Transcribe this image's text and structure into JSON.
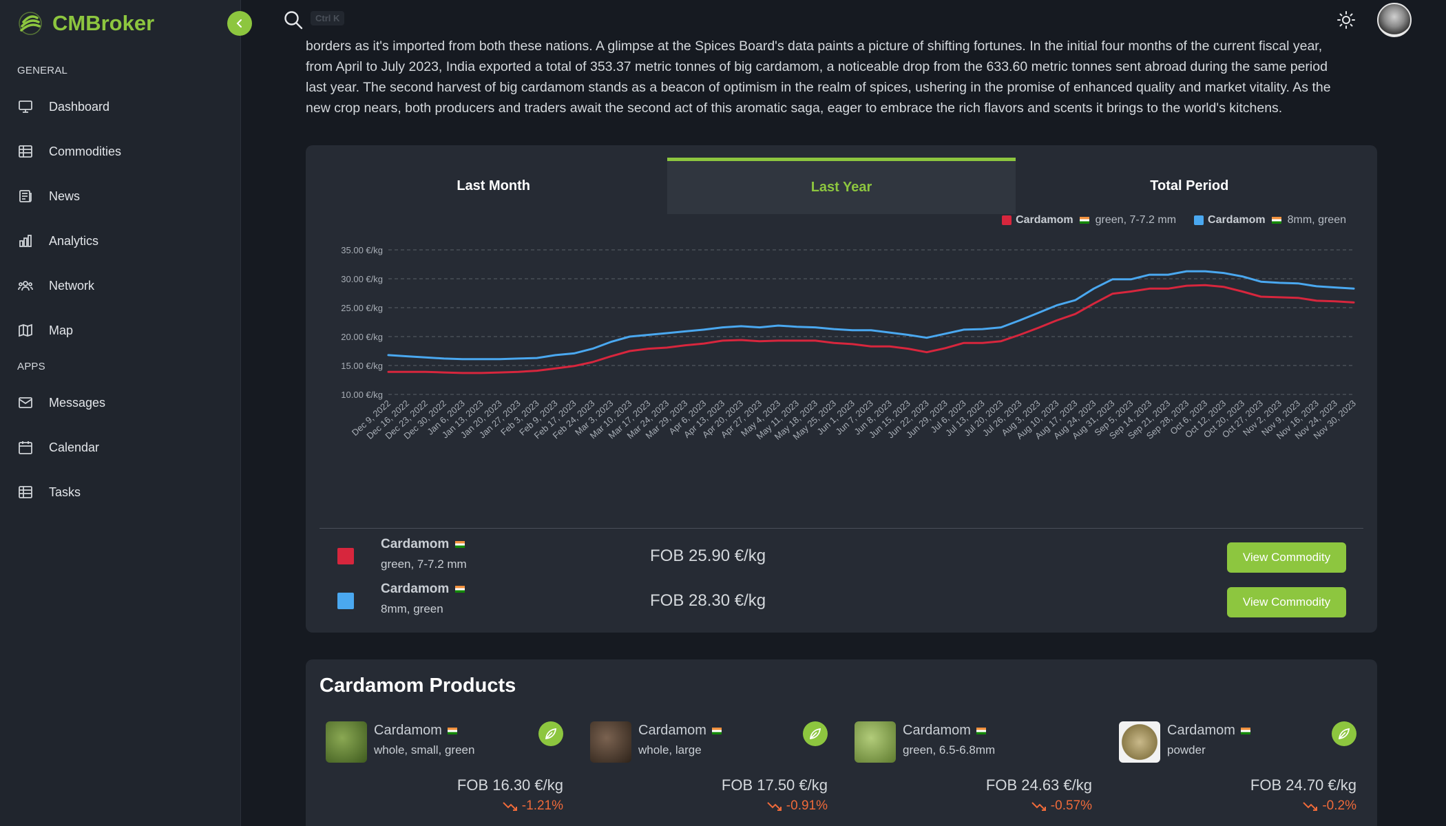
{
  "app": {
    "name": "CMBroker",
    "accent_color": "#8dc63f"
  },
  "sidebar": {
    "section_general": "GENERAL",
    "section_apps": "APPS",
    "items": [
      {
        "label": "Dashboard",
        "icon": "monitor-icon"
      },
      {
        "label": "Commodities",
        "icon": "table-icon"
      },
      {
        "label": "News",
        "icon": "newspaper-icon"
      },
      {
        "label": "Analytics",
        "icon": "bar-chart-icon"
      },
      {
        "label": "Network",
        "icon": "users-icon"
      },
      {
        "label": "Map",
        "icon": "map-icon"
      },
      {
        "label": "Messages",
        "icon": "mail-icon"
      },
      {
        "label": "Calendar",
        "icon": "calendar-icon"
      },
      {
        "label": "Tasks",
        "icon": "table-icon"
      }
    ]
  },
  "topbar": {
    "search_shortcut": "Ctrl K"
  },
  "article": {
    "lines": [
      "borders as it's imported from both these nations. A glimpse at the Spices Board's data paints a picture of shifting fortunes. In the initial four months of the current fiscal year,",
      "from April to July 2023, India exported a total of 353.37 metric tonnes of big cardamom, a noticeable drop from the 633.60 metric tonnes sent abroad during the same period",
      "last year. The second harvest of big cardamom stands as a beacon of optimism in the realm of spices, ushering in the promise of enhanced quality and market vitality. As the",
      "new crop nears, both producers and traders await the second act of this aromatic saga, eager to embrace the rich flavors and scents it brings to the world's kitchens."
    ]
  },
  "chart_tabs": [
    {
      "label": "Last Month",
      "active": false
    },
    {
      "label": "Last Year",
      "active": true
    },
    {
      "label": "Total Period",
      "active": false
    }
  ],
  "chart_data": {
    "type": "line",
    "ylim": [
      10,
      35
    ],
    "yticks": [
      "35.00 €/kg",
      "30.00 €/kg",
      "25.00 €/kg",
      "20.00 €/kg",
      "15.00 €/kg",
      "10.00 €/kg"
    ],
    "grid": true,
    "legend_position": "top-right",
    "x": [
      "Dec 9, 2022",
      "Dec 16, 2022",
      "Dec 23, 2022",
      "Dec 30, 2022",
      "Jan 6, 2023",
      "Jan 13, 2023",
      "Jan 20, 2023",
      "Jan 27, 2023",
      "Feb 3, 2023",
      "Feb 9, 2023",
      "Feb 17, 2023",
      "Feb 24, 2023",
      "Mar 3, 2023",
      "Mar 10, 2023",
      "Mar 17, 2023",
      "Mar 24, 2023",
      "Mar 29, 2023",
      "Apr 6, 2023",
      "Apr 13, 2023",
      "Apr 20, 2023",
      "Apr 27, 2023",
      "May 4, 2023",
      "May 11, 2023",
      "May 18, 2023",
      "May 25, 2023",
      "Jun 1, 2023",
      "Jun 7, 2023",
      "Jun 8, 2023",
      "Jun 15, 2023",
      "Jun 22, 2023",
      "Jun 29, 2023",
      "Jul 6, 2023",
      "Jul 13, 2023",
      "Jul 20, 2023",
      "Jul 26, 2023",
      "Aug 3, 2023",
      "Aug 10, 2023",
      "Aug 17, 2023",
      "Aug 24, 2023",
      "Aug 31, 2023",
      "Sep 5, 2023",
      "Sep 14, 2023",
      "Sep 21, 2023",
      "Sep 28, 2023",
      "Oct 6, 2023",
      "Oct 12, 2023",
      "Oct 20, 2023",
      "Oct 27, 2023",
      "Nov 2, 2023",
      "Nov 9, 2023",
      "Nov 16, 2023",
      "Nov 24, 2023",
      "Nov 30, 2023"
    ],
    "series": [
      {
        "name": "Cardamom green, 7-7.2 mm",
        "color": "#d7263d",
        "values": [
          13.9,
          13.9,
          13.9,
          13.8,
          13.7,
          13.7,
          13.8,
          13.9,
          14.1,
          14.5,
          14.9,
          15.6,
          16.6,
          17.5,
          17.9,
          18.1,
          18.5,
          18.8,
          19.3,
          19.4,
          19.2,
          19.3,
          19.3,
          19.3,
          18.9,
          18.7,
          18.3,
          18.3,
          17.9,
          17.3,
          18.0,
          18.9,
          18.9,
          19.2,
          20.3,
          21.5,
          22.8,
          23.9,
          25.7,
          27.4,
          27.8,
          28.3,
          28.3,
          28.8,
          28.9,
          28.6,
          27.8,
          26.9,
          26.8,
          26.7,
          26.2,
          26.1,
          25.9
        ]
      },
      {
        "name": "Cardamom 8mm, green",
        "color": "#4aa8f0",
        "values": [
          16.8,
          16.6,
          16.4,
          16.2,
          16.1,
          16.1,
          16.1,
          16.2,
          16.3,
          16.8,
          17.1,
          17.9,
          19.1,
          20.0,
          20.3,
          20.6,
          20.9,
          21.2,
          21.6,
          21.8,
          21.6,
          21.9,
          21.7,
          21.6,
          21.3,
          21.1,
          21.1,
          20.7,
          20.3,
          19.8,
          20.5,
          21.2,
          21.3,
          21.6,
          22.8,
          24.1,
          25.4,
          26.3,
          28.3,
          29.9,
          29.9,
          30.7,
          30.7,
          31.3,
          31.3,
          31.0,
          30.4,
          29.5,
          29.3,
          29.2,
          28.7,
          28.5,
          28.3
        ]
      }
    ]
  },
  "price_rows": [
    {
      "name": "Cardamom",
      "desc": "green, 7-7.2 mm",
      "price": "FOB 25.90 €/kg",
      "button": "View Commodity",
      "color": "#d7263d"
    },
    {
      "name": "Cardamom",
      "desc": "8mm, green",
      "price": "FOB 28.30 €/kg",
      "button": "View Commodity",
      "color": "#4aa8f0"
    }
  ],
  "legend": [
    {
      "name": "Cardamom",
      "desc": "green, 7-7.2 mm"
    },
    {
      "name": "Cardamom",
      "desc": "8mm, green"
    }
  ],
  "products": {
    "title": "Cardamom Products",
    "items": [
      {
        "name": "Cardamom",
        "desc": "whole, small, green",
        "price": "FOB 16.30 €/kg",
        "change": "-1.21%",
        "thumb_color": "#5a7a2e"
      },
      {
        "name": "Cardamom",
        "desc": "whole, large",
        "price": "FOB 17.50 €/kg",
        "change": "-0.91%",
        "thumb_color": "#4a3a2c"
      },
      {
        "name": "Cardamom",
        "desc": "green, 6.5-6.8mm",
        "price": "FOB 24.63 €/kg",
        "change": "-0.57%",
        "thumb_color": "#7fa04a"
      },
      {
        "name": "Cardamom",
        "desc": "powder",
        "price": "FOB 24.70 €/kg",
        "change": "-0.2%",
        "thumb_color": "#9a8c5a"
      }
    ]
  }
}
